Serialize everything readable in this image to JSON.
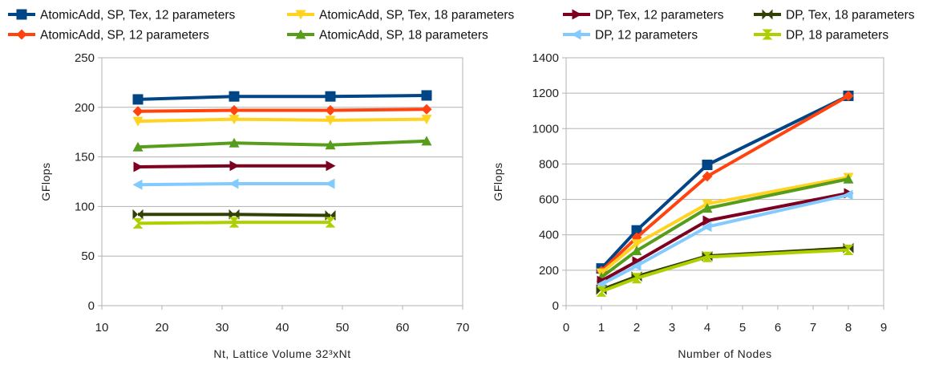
{
  "legend": {
    "rows": [
      [
        "AtomicAdd, SP, Tex, 12 parameters",
        "AtomicAdd, SP, Tex, 18 parameters",
        "DP, Tex, 12 parameters",
        "DP, Tex, 18 parameters"
      ],
      [
        "AtomicAdd, SP, 12 parameters",
        "AtomicAdd, SP, 18 parameters",
        "DP, 12 parameters",
        "DP, 18 parameters"
      ]
    ]
  },
  "series_styles": [
    {
      "name": "AtomicAdd, SP, Tex, 12 parameters",
      "color": "#004586",
      "marker": "square"
    },
    {
      "name": "AtomicAdd, SP, 12 parameters",
      "color": "#ff420e",
      "marker": "diamond"
    },
    {
      "name": "AtomicAdd, SP, Tex, 18 parameters",
      "color": "#ffd320",
      "marker": "triangle-down"
    },
    {
      "name": "AtomicAdd, SP, 18 parameters",
      "color": "#579d1c",
      "marker": "triangle-up"
    },
    {
      "name": "DP, Tex, 12 parameters",
      "color": "#7e0021",
      "marker": "triangle-right"
    },
    {
      "name": "DP, 12 parameters",
      "color": "#83caff",
      "marker": "triangle-left"
    },
    {
      "name": "DP, Tex, 18 parameters",
      "color": "#314004",
      "marker": "bowtie"
    },
    {
      "name": "DP, 18 parameters",
      "color": "#aecf00",
      "marker": "hourglass"
    }
  ],
  "chart_data": [
    {
      "type": "line",
      "xlabel": "Nt, Lattice Volume 32³xNt",
      "ylabel": "GFlops",
      "xlim": [
        10,
        70
      ],
      "ylim": [
        0,
        250
      ],
      "xticks": [
        10,
        20,
        30,
        40,
        50,
        60,
        70
      ],
      "yticks": [
        0,
        50,
        100,
        150,
        200,
        250
      ],
      "grid": "horizontal",
      "series": [
        {
          "name": "AtomicAdd, SP, Tex, 12 parameters",
          "x": [
            16,
            32,
            48,
            64
          ],
          "values": [
            208,
            211,
            211,
            212
          ]
        },
        {
          "name": "AtomicAdd, SP, 12 parameters",
          "x": [
            16,
            32,
            48,
            64
          ],
          "values": [
            196,
            197,
            197,
            198
          ]
        },
        {
          "name": "AtomicAdd, SP, Tex, 18 parameters",
          "x": [
            16,
            32,
            48,
            64
          ],
          "values": [
            186,
            188,
            187,
            188
          ]
        },
        {
          "name": "AtomicAdd, SP, 18 parameters",
          "x": [
            16,
            32,
            48,
            64
          ],
          "values": [
            160,
            164,
            162,
            166
          ]
        },
        {
          "name": "DP, Tex, 12 parameters",
          "x": [
            16,
            32,
            48
          ],
          "values": [
            140,
            141,
            141
          ]
        },
        {
          "name": "DP, 12 parameters",
          "x": [
            16,
            32,
            48
          ],
          "values": [
            122,
            123,
            123
          ]
        },
        {
          "name": "DP, Tex, 18 parameters",
          "x": [
            16,
            32,
            48
          ],
          "values": [
            92,
            92,
            91
          ]
        },
        {
          "name": "DP, 18 parameters",
          "x": [
            16,
            32,
            48
          ],
          "values": [
            83,
            84,
            84
          ]
        }
      ]
    },
    {
      "type": "line",
      "xlabel": "Number of Nodes",
      "ylabel": "GFlops",
      "xlim": [
        0,
        9
      ],
      "ylim": [
        0,
        1400
      ],
      "xticks": [
        0,
        1,
        2,
        3,
        4,
        5,
        6,
        7,
        8,
        9
      ],
      "yticks": [
        0,
        200,
        400,
        600,
        800,
        1000,
        1200,
        1400
      ],
      "grid": "horizontal",
      "series": [
        {
          "name": "AtomicAdd, SP, Tex, 12 parameters",
          "x": [
            1,
            2,
            4,
            8
          ],
          "values": [
            210,
            425,
            795,
            1185
          ]
        },
        {
          "name": "AtomicAdd, SP, 12 parameters",
          "x": [
            1,
            2,
            4,
            8
          ],
          "values": [
            195,
            385,
            730,
            1185
          ]
        },
        {
          "name": "AtomicAdd, SP, Tex, 18 parameters",
          "x": [
            1,
            2,
            4,
            8
          ],
          "values": [
            185,
            350,
            575,
            725
          ]
        },
        {
          "name": "AtomicAdd, SP, 18 parameters",
          "x": [
            1,
            2,
            4,
            8
          ],
          "values": [
            160,
            310,
            550,
            715
          ]
        },
        {
          "name": "DP, Tex, 12 parameters",
          "x": [
            1,
            2,
            4,
            8
          ],
          "values": [
            140,
            250,
            480,
            635
          ]
        },
        {
          "name": "DP, 12 parameters",
          "x": [
            1,
            2,
            4,
            8
          ],
          "values": [
            120,
            225,
            445,
            625
          ]
        },
        {
          "name": "DP, Tex, 18 parameters",
          "x": [
            1,
            2,
            4,
            8
          ],
          "values": [
            90,
            165,
            280,
            325
          ]
        },
        {
          "name": "DP, 18 parameters",
          "x": [
            1,
            2,
            4,
            8
          ],
          "values": [
            80,
            155,
            275,
            315
          ]
        }
      ]
    }
  ]
}
